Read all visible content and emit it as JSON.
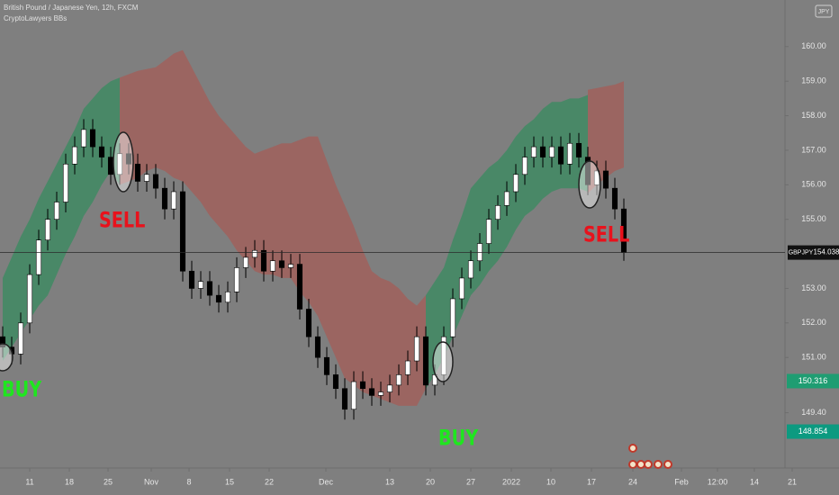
{
  "header": {
    "symbol": "British Pound / Japanese Yen, 12h, FXCM",
    "indicator": "CryptoLawyers BBs",
    "currency_badge": "JPY"
  },
  "chart_data": {
    "type": "candlestick",
    "open": [
      151.6,
      151.3,
      151.1,
      152.0,
      153.4,
      154.4,
      155.0,
      155.5,
      156.6,
      157.1,
      157.6,
      157.1,
      156.8,
      156.3,
      156.9,
      156.6,
      156.1,
      156.3,
      155.9,
      155.3,
      155.8,
      153.5,
      153.0,
      153.2,
      152.8,
      152.6,
      152.9,
      153.6,
      153.9,
      154.1,
      153.5,
      153.8,
      153.6,
      153.7,
      152.4,
      151.6,
      151.0,
      150.5,
      150.1,
      149.5,
      150.3,
      150.1,
      149.9,
      150.0,
      150.2,
      150.5,
      150.9,
      151.6,
      150.2,
      150.5,
      151.6,
      152.7,
      153.3,
      153.8,
      154.3,
      155.0,
      155.4,
      155.8,
      156.3,
      156.8,
      157.1,
      156.8,
      157.1,
      156.6,
      157.2,
      156.8,
      156.0,
      156.4,
      155.9,
      155.3
    ],
    "high": [
      151.9,
      151.6,
      152.3,
      153.7,
      154.7,
      155.3,
      155.8,
      156.9,
      157.4,
      157.9,
      157.9,
      157.4,
      157.1,
      157.2,
      157.2,
      156.9,
      156.6,
      156.6,
      156.2,
      156.1,
      156.1,
      153.8,
      153.5,
      153.5,
      153.1,
      153.2,
      153.9,
      154.2,
      154.4,
      154.4,
      154.1,
      154.1,
      154.0,
      154.0,
      152.7,
      151.9,
      151.3,
      150.8,
      150.4,
      150.6,
      150.6,
      150.4,
      150.3,
      150.5,
      150.8,
      151.2,
      151.9,
      151.9,
      150.8,
      151.9,
      153.0,
      153.6,
      154.1,
      154.6,
      155.3,
      155.7,
      156.1,
      156.6,
      157.1,
      157.4,
      157.4,
      157.4,
      157.4,
      157.5,
      157.5,
      157.1,
      156.7,
      156.7,
      156.2,
      155.6
    ],
    "low": [
      151.0,
      150.8,
      150.8,
      151.7,
      153.1,
      154.1,
      154.7,
      155.2,
      156.3,
      156.8,
      156.8,
      156.5,
      156.0,
      156.0,
      156.3,
      155.8,
      155.8,
      155.6,
      155.0,
      155.0,
      153.2,
      152.7,
      152.7,
      152.5,
      152.3,
      152.3,
      152.6,
      153.3,
      153.6,
      153.2,
      153.2,
      153.3,
      153.3,
      152.1,
      151.3,
      150.7,
      150.2,
      149.8,
      149.2,
      149.2,
      149.8,
      149.6,
      149.6,
      149.7,
      149.9,
      150.2,
      150.6,
      149.9,
      149.9,
      150.2,
      151.3,
      152.4,
      153.0,
      153.5,
      154.0,
      154.7,
      155.1,
      155.5,
      156.0,
      156.5,
      156.5,
      156.5,
      156.3,
      156.3,
      156.5,
      155.7,
      155.7,
      155.6,
      155.0,
      153.8
    ],
    "close": [
      151.3,
      151.1,
      152.0,
      153.4,
      154.4,
      155.0,
      155.5,
      156.6,
      157.1,
      157.6,
      157.1,
      156.8,
      156.3,
      156.9,
      156.6,
      156.1,
      156.3,
      155.9,
      155.3,
      155.8,
      153.5,
      153.0,
      153.2,
      152.8,
      152.6,
      152.9,
      153.6,
      153.9,
      154.1,
      153.5,
      153.8,
      153.6,
      153.7,
      152.4,
      151.6,
      151.0,
      150.5,
      150.1,
      149.5,
      150.3,
      150.1,
      149.9,
      150.0,
      150.2,
      150.5,
      150.9,
      151.6,
      150.2,
      150.5,
      151.6,
      152.7,
      153.3,
      153.8,
      154.3,
      155.0,
      155.4,
      155.8,
      156.3,
      156.8,
      157.1,
      156.8,
      157.1,
      156.6,
      157.2,
      156.8,
      156.0,
      156.4,
      155.9,
      155.3,
      154.04
    ],
    "up_color": "#ffffff",
    "down_color": "#000000",
    "bands": [
      {
        "start": 0,
        "color": "#3f8a63",
        "upper": [
          153.3,
          153.9,
          154.5,
          155.0,
          155.6,
          156.1,
          156.6,
          157.1,
          157.6,
          158.2,
          158.5,
          158.8,
          159.0,
          159.1
        ],
        "lower": [
          150.9,
          151.3,
          151.7,
          152.1,
          152.5,
          152.8,
          153.4,
          154.0,
          154.5,
          155.1,
          155.5,
          156.0,
          156.4,
          156.0
        ]
      },
      {
        "start": 13,
        "color": "#a0605c",
        "upper": [
          159.1,
          159.2,
          159.3,
          159.35,
          159.4,
          159.6,
          159.8,
          159.9,
          159.4,
          158.9,
          158.4,
          158.0,
          157.7,
          157.4,
          157.1,
          156.9,
          157.0,
          157.1,
          157.2,
          157.2,
          157.3,
          157.4,
          157.4,
          156.7,
          156.0,
          155.4,
          154.8,
          154.1,
          153.5,
          153.3,
          153.2,
          153.0,
          152.7,
          152.5,
          152.8
        ],
        "lower": [
          156.0,
          156.1,
          156.2,
          156.4,
          156.5,
          156.4,
          156.2,
          156.1,
          155.8,
          155.5,
          155.1,
          154.8,
          154.5,
          154.1,
          153.8,
          153.5,
          153.4,
          153.4,
          153.3,
          153.3,
          152.9,
          152.6,
          152.2,
          151.6,
          151.0,
          150.4,
          150.2,
          150.0,
          149.9,
          149.8,
          149.7,
          149.6,
          149.6,
          149.6,
          150.1
        ]
      },
      {
        "start": 47,
        "color": "#3f8a63",
        "upper": [
          152.8,
          153.2,
          153.6,
          154.4,
          155.1,
          155.9,
          156.2,
          156.5,
          156.7,
          157.0,
          157.4,
          157.7,
          157.9,
          158.2,
          158.4,
          158.4,
          158.5,
          158.5,
          158.6
        ],
        "lower": [
          150.1,
          150.5,
          151.0,
          151.6,
          152.2,
          152.8,
          153.1,
          153.5,
          153.8,
          154.2,
          154.7,
          155.1,
          155.3,
          155.6,
          155.8,
          155.9,
          155.9,
          155.9,
          155.8
        ]
      },
      {
        "start": 65,
        "color": "#a0605c",
        "upper": [
          158.75,
          158.8,
          158.85,
          158.9,
          159.0
        ],
        "lower": [
          155.75,
          156.0,
          156.2,
          156.4,
          156.5
        ]
      }
    ],
    "ylim": [
      147.8,
      161.35
    ],
    "yticks": [
      {
        "value": 160,
        "label": "160.00"
      },
      {
        "value": 159,
        "label": "159.00"
      },
      {
        "value": 158,
        "label": "158.00"
      },
      {
        "value": 157,
        "label": "157.00"
      },
      {
        "value": 156,
        "label": "156.00"
      },
      {
        "value": 155,
        "label": "155.00"
      },
      {
        "value": 153,
        "label": "153.00"
      },
      {
        "value": 152,
        "label": "152.00"
      },
      {
        "value": 151,
        "label": "151.00"
      },
      {
        "value": 149.4,
        "label": "149.40"
      }
    ],
    "xlim": [
      -0.3,
      86.9
    ],
    "xticks": [
      {
        "value": 3.0,
        "label": "11"
      },
      {
        "value": 7.4,
        "label": "18"
      },
      {
        "value": 11.7,
        "label": "25"
      },
      {
        "value": 16.5,
        "label": "Nov"
      },
      {
        "value": 20.7,
        "label": "8"
      },
      {
        "value": 25.2,
        "label": "15"
      },
      {
        "value": 29.6,
        "label": "22"
      },
      {
        "value": 35.9,
        "label": "Dec"
      },
      {
        "value": 43.0,
        "label": "13"
      },
      {
        "value": 47.5,
        "label": "20"
      },
      {
        "value": 52.0,
        "label": "27"
      },
      {
        "value": 56.5,
        "label": "2022"
      },
      {
        "value": 60.9,
        "label": "10"
      },
      {
        "value": 65.4,
        "label": "17"
      },
      {
        "value": 70.0,
        "label": "24"
      },
      {
        "value": 75.4,
        "label": "Feb"
      },
      {
        "value": 79.4,
        "label": "12:00"
      },
      {
        "value": 83.5,
        "label": "14"
      },
      {
        "value": 87.7,
        "label": "21"
      }
    ],
    "last_price": {
      "symbol": "GBPJPY",
      "value": 154.038
    },
    "price_labels": [
      {
        "value": 150.316,
        "color": "#1f9d72"
      },
      {
        "value": 148.854,
        "color": "#0c9a80"
      }
    ],
    "annotations": [
      {
        "text": "BUY",
        "color": "#1fe61f"
      },
      {
        "text": "SELL",
        "color": "#e8121c"
      },
      {
        "text": "BUY",
        "color": "#1fe61f"
      },
      {
        "text": "SELL",
        "color": "#e8121c"
      }
    ]
  }
}
